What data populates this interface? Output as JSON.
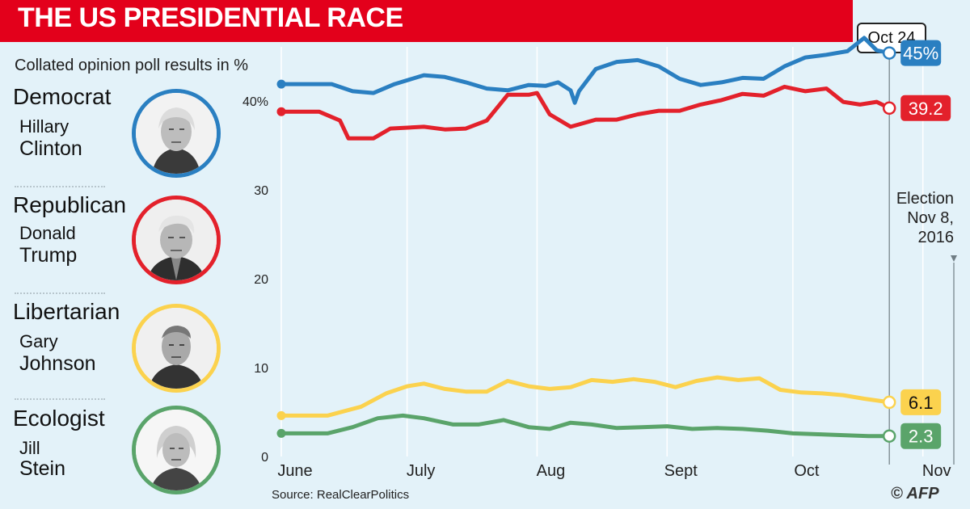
{
  "title": "THE US PRESIDENTIAL RACE",
  "subtitle": "Collated opinion poll results in %",
  "date_marker": "Oct 24",
  "election_note": [
    "Election",
    "Nov 8,",
    "2016"
  ],
  "source": "Source: RealClearPolitics",
  "credit": "© AFP",
  "colors": {
    "democrat": "#2a7fc1",
    "republican": "#e3212b",
    "libertarian": "#fbd24e",
    "ecologist": "#5aa46a",
    "title_bar": "#e3001b",
    "background": "#e3f2f9"
  },
  "candidates": [
    {
      "party": "Democrat",
      "first": "Hillary",
      "last": "Clinton",
      "color": "#2a7fc1",
      "icon": "portrait-icon"
    },
    {
      "party": "Republican",
      "first": "Donald",
      "last": "Trump",
      "color": "#e3212b",
      "icon": "portrait-icon"
    },
    {
      "party": "Libertarian",
      "first": "Gary",
      "last": "Johnson",
      "color": "#fbd24e",
      "icon": "portrait-icon"
    },
    {
      "party": "Ecologist",
      "first": "Jill",
      "last": "Stein",
      "color": "#5aa46a",
      "icon": "portrait-icon"
    }
  ],
  "chart_data": {
    "type": "line",
    "title": "THE US PRESIDENTIAL RACE",
    "subtitle": "Collated opinion poll results in %",
    "xlabel": "",
    "ylabel": "",
    "x_range": [
      "2016-06-01",
      "2016-11-08"
    ],
    "ylim": [
      0,
      50
    ],
    "y_ticks": [
      "40%",
      "30",
      "20",
      "10",
      "0"
    ],
    "y_tick_values": [
      40,
      30,
      20,
      10,
      0
    ],
    "x_ticks": [
      "June",
      "July",
      "Aug",
      "Sept",
      "Oct",
      "Nov"
    ],
    "x_tick_dates": [
      "2016-06-01",
      "2016-07-01",
      "2016-08-01",
      "2016-09-01",
      "2016-10-01",
      "2016-11-01"
    ],
    "grid": "vertical",
    "marker_date": "2016-10-24",
    "series": [
      {
        "name": "Democrat",
        "color": "#2a7fc1",
        "end_label": "45%",
        "points": [
          [
            "2016-06-01",
            41.9
          ],
          [
            "2016-06-13",
            41.9
          ],
          [
            "2016-06-18",
            41.1
          ],
          [
            "2016-06-23",
            40.9
          ],
          [
            "2016-06-28",
            41.9
          ],
          [
            "2016-07-05",
            42.9
          ],
          [
            "2016-07-10",
            42.7
          ],
          [
            "2016-07-15",
            42.1
          ],
          [
            "2016-07-20",
            41.4
          ],
          [
            "2016-07-25",
            41.2
          ],
          [
            "2016-07-30",
            41.8
          ],
          [
            "2016-08-03",
            41.7
          ],
          [
            "2016-08-06",
            42.1
          ],
          [
            "2016-08-09",
            41.2
          ],
          [
            "2016-08-10",
            39.8
          ],
          [
            "2016-08-11",
            41.1
          ],
          [
            "2016-08-15",
            43.6
          ],
          [
            "2016-08-20",
            44.4
          ],
          [
            "2016-08-25",
            44.6
          ],
          [
            "2016-08-30",
            43.9
          ],
          [
            "2016-09-04",
            42.5
          ],
          [
            "2016-09-09",
            41.8
          ],
          [
            "2016-09-14",
            42.1
          ],
          [
            "2016-09-19",
            42.6
          ],
          [
            "2016-09-24",
            42.5
          ],
          [
            "2016-09-29",
            43.9
          ],
          [
            "2016-10-04",
            44.9
          ],
          [
            "2016-10-09",
            45.2
          ],
          [
            "2016-10-14",
            45.6
          ],
          [
            "2016-10-18",
            47.1
          ],
          [
            "2016-10-21",
            45.7
          ],
          [
            "2016-10-24",
            45.4
          ]
        ]
      },
      {
        "name": "Republican",
        "color": "#e3212b",
        "end_label": "39.2",
        "points": [
          [
            "2016-06-01",
            38.8
          ],
          [
            "2016-06-10",
            38.8
          ],
          [
            "2016-06-15",
            37.8
          ],
          [
            "2016-06-17",
            35.8
          ],
          [
            "2016-06-23",
            35.8
          ],
          [
            "2016-06-27",
            36.9
          ],
          [
            "2016-07-05",
            37.1
          ],
          [
            "2016-07-10",
            36.8
          ],
          [
            "2016-07-15",
            36.9
          ],
          [
            "2016-07-20",
            37.8
          ],
          [
            "2016-07-25",
            40.7
          ],
          [
            "2016-07-30",
            40.7
          ],
          [
            "2016-08-01",
            40.9
          ],
          [
            "2016-08-04",
            38.5
          ],
          [
            "2016-08-09",
            37.1
          ],
          [
            "2016-08-15",
            37.9
          ],
          [
            "2016-08-20",
            37.9
          ],
          [
            "2016-08-25",
            38.5
          ],
          [
            "2016-08-30",
            38.9
          ],
          [
            "2016-09-04",
            38.9
          ],
          [
            "2016-09-09",
            39.6
          ],
          [
            "2016-09-14",
            40.1
          ],
          [
            "2016-09-19",
            40.8
          ],
          [
            "2016-09-24",
            40.6
          ],
          [
            "2016-09-29",
            41.6
          ],
          [
            "2016-10-04",
            41.1
          ],
          [
            "2016-10-09",
            41.4
          ],
          [
            "2016-10-13",
            39.9
          ],
          [
            "2016-10-17",
            39.6
          ],
          [
            "2016-10-21",
            39.9
          ],
          [
            "2016-10-24",
            39.2
          ]
        ]
      },
      {
        "name": "Libertarian",
        "color": "#fbd24e",
        "end_label": "6.1",
        "points": [
          [
            "2016-06-01",
            4.6
          ],
          [
            "2016-06-12",
            4.6
          ],
          [
            "2016-06-20",
            5.6
          ],
          [
            "2016-06-26",
            7.1
          ],
          [
            "2016-07-01",
            7.9
          ],
          [
            "2016-07-05",
            8.2
          ],
          [
            "2016-07-10",
            7.6
          ],
          [
            "2016-07-15",
            7.3
          ],
          [
            "2016-07-20",
            7.3
          ],
          [
            "2016-07-25",
            8.5
          ],
          [
            "2016-07-30",
            7.9
          ],
          [
            "2016-08-04",
            7.6
          ],
          [
            "2016-08-09",
            7.8
          ],
          [
            "2016-08-14",
            8.6
          ],
          [
            "2016-08-19",
            8.4
          ],
          [
            "2016-08-24",
            8.7
          ],
          [
            "2016-08-29",
            8.4
          ],
          [
            "2016-09-03",
            7.8
          ],
          [
            "2016-09-08",
            8.5
          ],
          [
            "2016-09-13",
            8.9
          ],
          [
            "2016-09-18",
            8.6
          ],
          [
            "2016-09-23",
            8.8
          ],
          [
            "2016-09-28",
            7.5
          ],
          [
            "2016-10-03",
            7.2
          ],
          [
            "2016-10-08",
            7.1
          ],
          [
            "2016-10-13",
            6.9
          ],
          [
            "2016-10-18",
            6.5
          ],
          [
            "2016-10-24",
            6.1
          ]
        ]
      },
      {
        "name": "Ecologist",
        "color": "#5aa46a",
        "end_label": "2.3",
        "points": [
          [
            "2016-06-01",
            2.6
          ],
          [
            "2016-06-12",
            2.6
          ],
          [
            "2016-06-18",
            3.3
          ],
          [
            "2016-06-24",
            4.3
          ],
          [
            "2016-06-30",
            4.6
          ],
          [
            "2016-07-05",
            4.3
          ],
          [
            "2016-07-12",
            3.6
          ],
          [
            "2016-07-18",
            3.6
          ],
          [
            "2016-07-24",
            4.1
          ],
          [
            "2016-07-30",
            3.3
          ],
          [
            "2016-08-04",
            3.1
          ],
          [
            "2016-08-09",
            3.8
          ],
          [
            "2016-08-14",
            3.6
          ],
          [
            "2016-08-20",
            3.2
          ],
          [
            "2016-08-26",
            3.3
          ],
          [
            "2016-09-01",
            3.4
          ],
          [
            "2016-09-07",
            3.1
          ],
          [
            "2016-09-13",
            3.2
          ],
          [
            "2016-09-19",
            3.1
          ],
          [
            "2016-09-25",
            2.9
          ],
          [
            "2016-10-01",
            2.6
          ],
          [
            "2016-10-07",
            2.5
          ],
          [
            "2016-10-13",
            2.4
          ],
          [
            "2016-10-19",
            2.3
          ],
          [
            "2016-10-24",
            2.3
          ]
        ]
      }
    ]
  }
}
